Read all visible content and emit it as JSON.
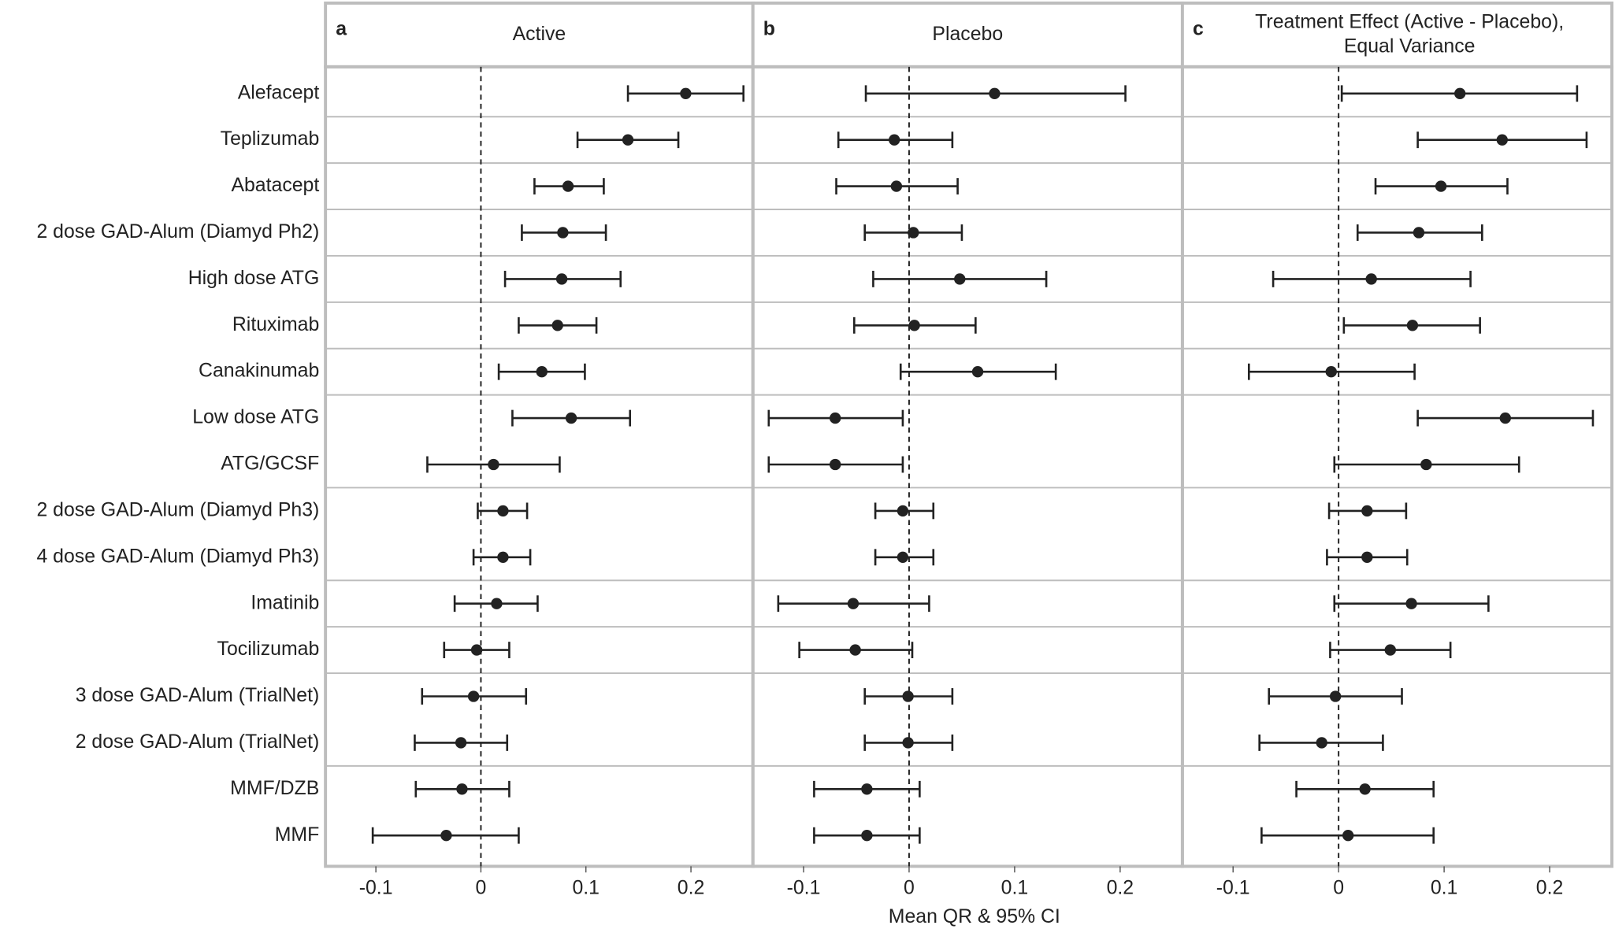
{
  "chart_data": {
    "type": "forest",
    "xlabel": "Mean QR & 95% CI",
    "xlim": [
      -0.148,
      0.259
    ],
    "xticks": [
      -0.1,
      0,
      0.1,
      0.2
    ],
    "categories": [
      "Alefacept",
      "Teplizumab",
      "Abatacept",
      "2 dose GAD-Alum (Diamyd Ph2)",
      "High dose ATG",
      "Rituximab",
      "Canakinumab",
      "Low dose ATG",
      "ATG/GCSF",
      "2 dose GAD-Alum (Diamyd Ph3)",
      "4 dose GAD-Alum (Diamyd Ph3)",
      "Imatinib",
      "Tocilizumab",
      "3 dose GAD-Alum (TrialNet)",
      "2 dose GAD-Alum (TrialNet)",
      "MMF/DZB",
      "MMF"
    ],
    "color": "#222222",
    "panels": [
      {
        "label": "a",
        "title": [
          "Active"
        ],
        "values": [
          0.195,
          0.14,
          0.083,
          0.078,
          0.077,
          0.073,
          0.058,
          0.086,
          0.012,
          0.021,
          0.021,
          0.015,
          -0.004,
          -0.007,
          -0.019,
          -0.018,
          -0.033
        ],
        "lower": [
          0.14,
          0.092,
          0.051,
          0.039,
          0.023,
          0.036,
          0.017,
          0.03,
          -0.051,
          -0.003,
          -0.007,
          -0.025,
          -0.035,
          -0.056,
          -0.063,
          -0.062,
          -0.103
        ],
        "upper": [
          0.25,
          0.188,
          0.117,
          0.119,
          0.133,
          0.11,
          0.099,
          0.142,
          0.075,
          0.044,
          0.047,
          0.054,
          0.027,
          0.043,
          0.025,
          0.027,
          0.036
        ]
      },
      {
        "label": "b",
        "title": [
          "Placebo"
        ],
        "values": [
          0.081,
          -0.014,
          -0.012,
          0.004,
          0.048,
          0.005,
          0.065,
          -0.07,
          -0.07,
          -0.006,
          -0.006,
          -0.053,
          -0.051,
          -0.001,
          -0.001,
          -0.04,
          -0.04
        ],
        "lower": [
          -0.041,
          -0.067,
          -0.069,
          -0.042,
          -0.034,
          -0.052,
          -0.008,
          -0.133,
          -0.133,
          -0.032,
          -0.032,
          -0.124,
          -0.104,
          -0.042,
          -0.042,
          -0.09,
          -0.09
        ],
        "upper": [
          0.205,
          0.041,
          0.046,
          0.05,
          0.13,
          0.063,
          0.139,
          -0.006,
          -0.006,
          0.023,
          0.023,
          0.019,
          0.003,
          0.041,
          0.041,
          0.01,
          0.01
        ]
      },
      {
        "label": "c",
        "title": [
          "Treatment Effect (Active - Placebo),",
          "Equal Variance"
        ],
        "values": [
          0.115,
          0.155,
          0.097,
          0.076,
          0.031,
          0.07,
          -0.007,
          0.158,
          0.083,
          0.027,
          0.027,
          0.069,
          0.049,
          -0.003,
          -0.016,
          0.025,
          0.009
        ],
        "lower": [
          0.003,
          0.075,
          0.035,
          0.018,
          -0.062,
          0.005,
          -0.085,
          0.075,
          -0.004,
          -0.009,
          -0.011,
          -0.004,
          -0.008,
          -0.066,
          -0.075,
          -0.04,
          -0.073
        ],
        "upper": [
          0.226,
          0.235,
          0.16,
          0.136,
          0.125,
          0.134,
          0.072,
          0.241,
          0.171,
          0.064,
          0.065,
          0.142,
          0.106,
          0.06,
          0.042,
          0.09,
          0.09
        ]
      }
    ]
  }
}
